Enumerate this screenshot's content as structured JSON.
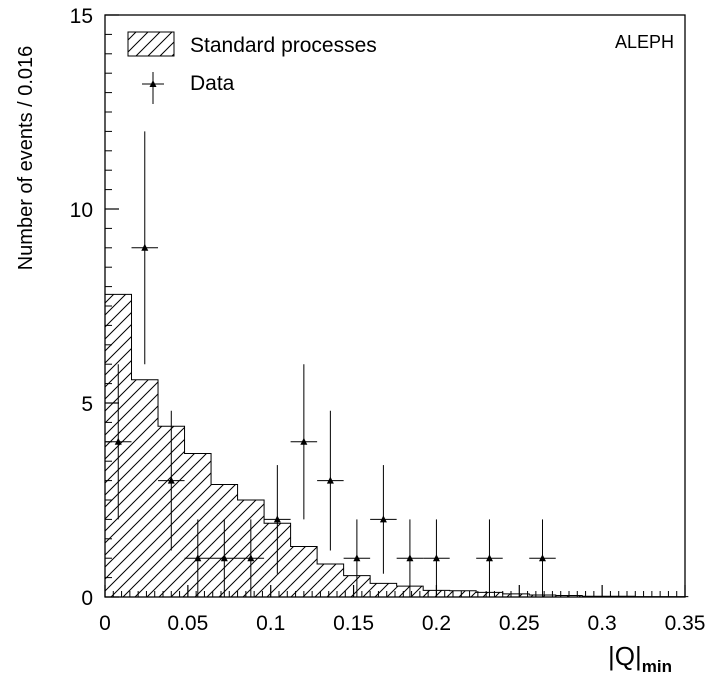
{
  "chart_data": {
    "type": "histogram",
    "xlabel": "|Q|",
    "xlabel_sub": "min",
    "ylabel": "Number of events / 0.016",
    "xlim": [
      0,
      0.35
    ],
    "ylim": [
      0,
      15
    ],
    "x_ticks": [
      0,
      0.05,
      0.1,
      0.15,
      0.2,
      0.25,
      0.3,
      0.35
    ],
    "x_tick_labels": [
      "0",
      "0.05",
      "0.1",
      "0.15",
      "0.2",
      "0.25",
      "0.3",
      "0.35"
    ],
    "y_ticks": [
      0,
      5,
      10,
      15
    ],
    "y_tick_labels": [
      "0",
      "5",
      "10",
      "15"
    ],
    "grid": false,
    "legend_position": "top-left",
    "annotation": "ALEPH",
    "bin_width": 0.016,
    "series": [
      {
        "name": "Standard processes",
        "style": "hatched-histogram",
        "bin_edges": [
          0,
          0.016,
          0.032,
          0.048,
          0.064,
          0.08,
          0.096,
          0.112,
          0.128,
          0.144,
          0.16,
          0.176,
          0.192,
          0.208,
          0.224,
          0.24,
          0.256,
          0.272,
          0.288,
          0.304,
          0.32,
          0.336,
          0.352
        ],
        "values": [
          7.8,
          5.6,
          4.4,
          3.7,
          2.9,
          2.5,
          1.9,
          1.3,
          0.85,
          0.55,
          0.35,
          0.28,
          0.17,
          0.16,
          0.12,
          0.08,
          0.05,
          0.04,
          0.02,
          0.02,
          0.01,
          0.01
        ]
      },
      {
        "name": "Data",
        "style": "points-with-errors",
        "x": [
          0.008,
          0.024,
          0.04,
          0.056,
          0.072,
          0.088,
          0.104,
          0.12,
          0.136,
          0.152,
          0.168,
          0.184,
          0.2,
          0.232,
          0.264
        ],
        "y": [
          4,
          9,
          3,
          1,
          1,
          1,
          2,
          4,
          3,
          1,
          2,
          1,
          1,
          1,
          1
        ],
        "y_err_low": [
          2,
          3,
          1.8,
          1,
          1,
          1,
          1.4,
          2,
          1.8,
          1,
          1.4,
          1,
          1,
          1,
          1
        ],
        "y_err_high": [
          2,
          3,
          1.8,
          1,
          1,
          1,
          1.4,
          2,
          1.8,
          1,
          1.4,
          1,
          1,
          1,
          1
        ]
      }
    ]
  }
}
